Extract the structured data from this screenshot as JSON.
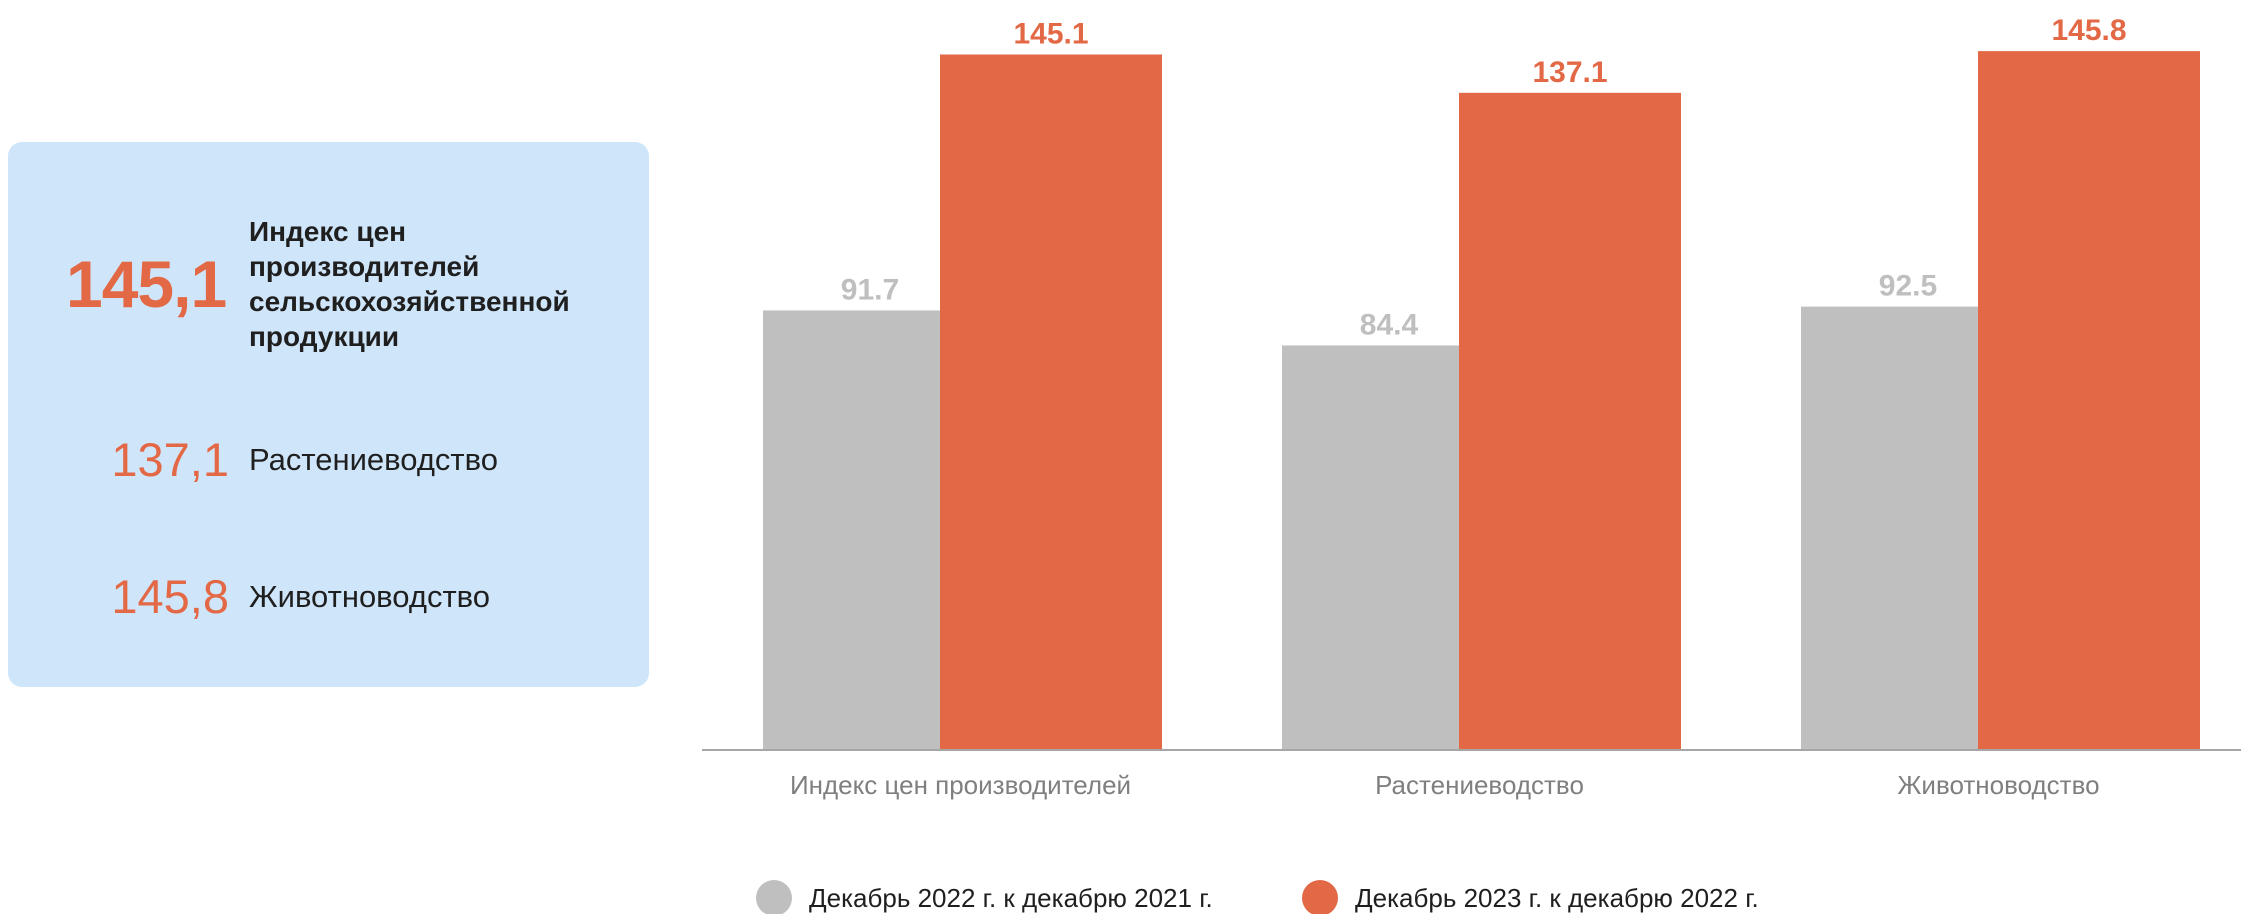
{
  "summary": {
    "main": {
      "value": "145,1",
      "label": "Индекс цен производителей сельскохозяйственной продукции"
    },
    "items": [
      {
        "value": "137,1",
        "label": "Растениеводство"
      },
      {
        "value": "145,8",
        "label": "Животноводство"
      }
    ]
  },
  "colors": {
    "accent": "#e36845",
    "gray": "#bfbfbf",
    "card_bg": "#cfe5fa",
    "axis": "#a6a6a6",
    "tick_label": "#7f7f7f"
  },
  "chart_data": {
    "type": "bar",
    "categories": [
      "Индекс цен производителей",
      "Растениеводство",
      "Животноводство"
    ],
    "series": [
      {
        "name": "Декабрь 2022 г. к декабрю 2021 г.",
        "values": [
          91.7,
          84.4,
          92.5
        ],
        "value_labels": [
          "91.7",
          "84.4",
          "92.5"
        ],
        "color": "#bfbfbf"
      },
      {
        "name": "Декабрь 2023 г. к декабрю 2022 г.",
        "values": [
          145.1,
          137.1,
          145.8
        ],
        "value_labels": [
          "145.1",
          "137.1",
          "145.8"
        ],
        "color": "#e36845"
      }
    ],
    "ylim": [
      0,
      160
    ],
    "grid": false,
    "legend_position": "bottom"
  }
}
